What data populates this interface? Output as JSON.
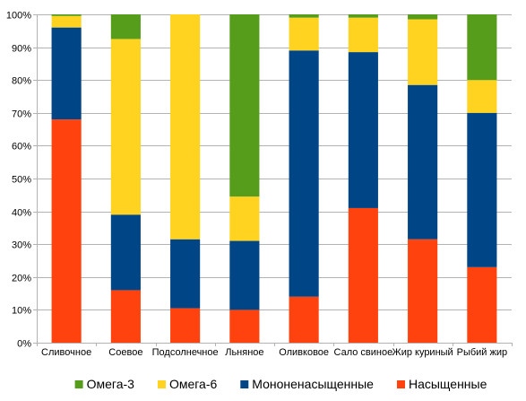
{
  "chart_data": {
    "type": "bar",
    "stacked": true,
    "normalized": true,
    "categories": [
      "Сливочное",
      "Соевое",
      "Подсолнечное",
      "Льняное",
      "Оливковое",
      "Сало свиное",
      "Жир куриный",
      "Рыбий жир"
    ],
    "series": [
      {
        "name": "Насыщенные",
        "color": "#ff420e",
        "values": [
          68,
          16,
          10.5,
          10,
          14,
          41,
          31.5,
          23
        ]
      },
      {
        "name": "Мононенасыщенные",
        "color": "#004586",
        "values": [
          28,
          23,
          21,
          21,
          75,
          47.5,
          47,
          47
        ]
      },
      {
        "name": "Омега-6",
        "color": "#ffd320",
        "values": [
          3.5,
          53.5,
          68.5,
          13.5,
          10,
          10.5,
          20,
          10
        ]
      },
      {
        "name": "Омега-3",
        "color": "#579d1c",
        "values": [
          0.5,
          7.5,
          0,
          55.5,
          1,
          1,
          1.5,
          20
        ]
      }
    ],
    "ylim": [
      0,
      100
    ],
    "y_ticks": [
      "0%",
      "10%",
      "20%",
      "30%",
      "40%",
      "50%",
      "60%",
      "70%",
      "80%",
      "90%",
      "100%"
    ],
    "grid": true,
    "legend_position": "bottom",
    "legend_order": [
      "Омега-3",
      "Омега-6",
      "Мононенасыщенные",
      "Насыщенные"
    ]
  }
}
